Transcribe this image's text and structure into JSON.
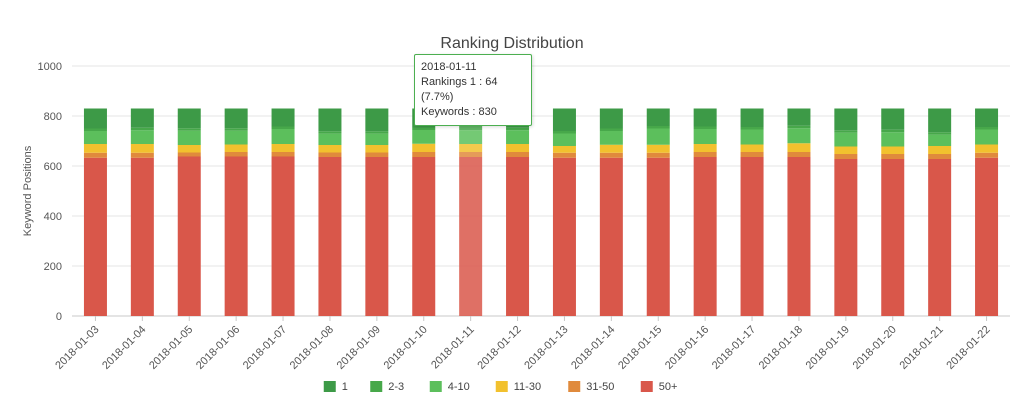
{
  "chart_data": {
    "type": "bar",
    "stacked": true,
    "title": "Ranking Distribution",
    "xlabel": "",
    "ylabel": "Keyword Positions",
    "ylim": [
      0,
      1000
    ],
    "yticks": [
      0,
      200,
      400,
      600,
      800,
      1000
    ],
    "grid": true,
    "legend_position": "bottom",
    "categories": [
      "2018-01-03",
      "2018-01-04",
      "2018-01-05",
      "2018-01-06",
      "2018-01-07",
      "2018-01-08",
      "2018-01-09",
      "2018-01-10",
      "2018-01-11",
      "2018-01-12",
      "2018-01-13",
      "2018-01-14",
      "2018-01-15",
      "2018-01-16",
      "2018-01-17",
      "2018-01-18",
      "2018-01-19",
      "2018-01-20",
      "2018-01-21",
      "2018-01-22"
    ],
    "series": [
      {
        "name": "50+",
        "color": "#d9574a",
        "values": [
          633,
          633,
          638,
          638,
          638,
          636,
          636,
          636,
          636,
          636,
          633,
          633,
          633,
          636,
          636,
          636,
          628,
          628,
          628,
          633
        ]
      },
      {
        "name": "31-50",
        "color": "#e08a3c",
        "values": [
          20,
          20,
          16,
          18,
          18,
          18,
          18,
          20,
          20,
          20,
          20,
          20,
          20,
          20,
          20,
          20,
          20,
          20,
          20,
          20
        ]
      },
      {
        "name": "11-30",
        "color": "#f2c12e",
        "values": [
          35,
          35,
          30,
          30,
          32,
          30,
          30,
          33,
          32,
          32,
          27,
          32,
          32,
          32,
          30,
          35,
          30,
          30,
          32,
          33
        ]
      },
      {
        "name": "4-10",
        "color": "#5cbf5c",
        "values": [
          52,
          55,
          57,
          55,
          60,
          45,
          45,
          55,
          55,
          55,
          50,
          55,
          65,
          60,
          60,
          60,
          55,
          57,
          45,
          60
        ]
      },
      {
        "name": "2-3",
        "color": "#47a84a",
        "values": [
          10,
          10,
          10,
          10,
          10,
          10,
          10,
          10,
          23,
          10,
          10,
          10,
          10,
          10,
          10,
          10,
          10,
          10,
          10,
          10
        ]
      },
      {
        "name": "1",
        "color": "#3d9a47",
        "values": [
          80,
          77,
          79,
          79,
          72,
          91,
          91,
          76,
          64,
          77,
          90,
          80,
          70,
          72,
          74,
          69,
          87,
          85,
          95,
          74
        ]
      }
    ],
    "legend": [
      {
        "label": "1",
        "color": "#3d9a47"
      },
      {
        "label": "2-3",
        "color": "#47a84a"
      },
      {
        "label": "4-10",
        "color": "#5cbf5c"
      },
      {
        "label": "11-30",
        "color": "#f2c12e"
      },
      {
        "label": "31-50",
        "color": "#e08a3c"
      },
      {
        "label": "50+",
        "color": "#d9574a"
      }
    ],
    "highlighted_category": "2018-01-11",
    "tooltip": {
      "date": "2018-01-11",
      "line1": "Rankings 1 : 64 (7.7%)",
      "line2": "Keywords : 830"
    }
  }
}
